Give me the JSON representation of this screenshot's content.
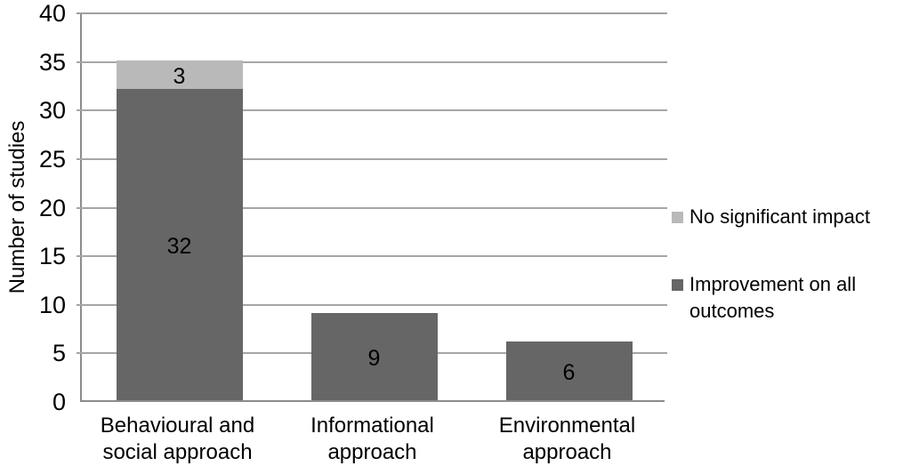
{
  "chart_data": {
    "type": "bar",
    "stacked": true,
    "title": "",
    "xlabel": "",
    "ylabel": "Number of studies",
    "ylim": [
      0,
      40
    ],
    "ytick_step": 5,
    "grid": true,
    "legend_position": "right",
    "categories": [
      {
        "lines": [
          "Behavioural and",
          "social approach"
        ]
      },
      {
        "lines": [
          "Informational",
          "approach"
        ]
      },
      {
        "lines": [
          "Environmental",
          "approach"
        ]
      }
    ],
    "series": [
      {
        "name": "Improvement on all outcomes",
        "color": "#666666",
        "values": [
          32,
          9,
          6
        ]
      },
      {
        "name": "No significant impact",
        "color": "#b9b9b9",
        "values": [
          3,
          0,
          0
        ]
      }
    ],
    "data_labels": true
  },
  "legend": {
    "items": [
      {
        "lines": [
          "No significant impact"
        ],
        "color": "#b9b9b9"
      },
      {
        "lines": [
          "Improvement on all",
          "outcomes"
        ],
        "color": "#666666"
      }
    ]
  },
  "colors": {
    "dark_series": "#666666",
    "light_series": "#b9b9b9",
    "gridline": "#a6a6a6",
    "axis": "#8c8c8c",
    "text": "#000000",
    "background": "#ffffff"
  }
}
